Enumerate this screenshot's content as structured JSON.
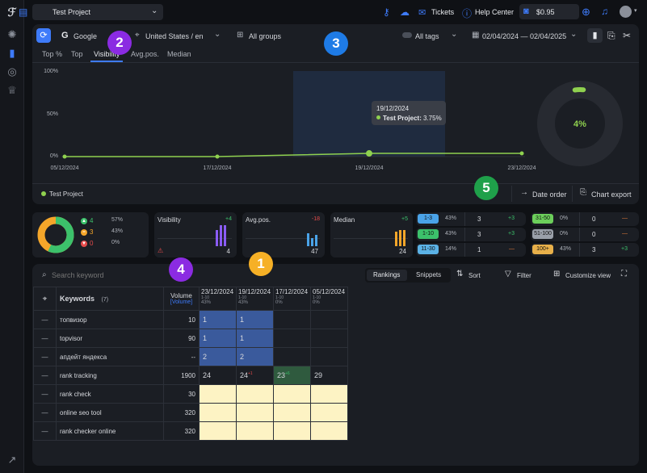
{
  "topbar": {
    "project_name": "Test Project",
    "tickets_label": "Tickets",
    "help_label": "Help Center",
    "balance": "$0.95"
  },
  "filters": {
    "engine": "Google",
    "region": "United States / en",
    "groups": "All groups",
    "tags": "All tags",
    "date_range": "02/04/2024 — 02/04/2025"
  },
  "tabs": [
    "Top %",
    "Top",
    "Visibility",
    "Avg.pos.",
    "Median"
  ],
  "chart_data": {
    "type": "line",
    "x": [
      "05/12/2024",
      "17/12/2024",
      "19/12/2024",
      "23/12/2024"
    ],
    "series": [
      {
        "name": "Test Project",
        "values": [
          0,
          0,
          3.75,
          3.75
        ],
        "color": "#8fd14f"
      }
    ],
    "yticks": [
      "100%",
      "50%",
      "0%"
    ],
    "ylim": [
      0,
      100
    ],
    "tooltip": {
      "date": "19/12/2024",
      "label": "Test Project:",
      "value": "3.75%"
    },
    "donut_value": "4%",
    "legend": "Test Project"
  },
  "chart_actions": {
    "date_order": "Date order",
    "chart_export": "Chart export"
  },
  "summary": {
    "dist": [
      {
        "count": "4",
        "pct": "57%",
        "color": "#3cc16b"
      },
      {
        "count": "3",
        "pct": "43%",
        "color": "#f4a62a"
      },
      {
        "count": "0",
        "pct": "0%",
        "color": "#e64b4b"
      }
    ],
    "visibility": {
      "label": "Visibility",
      "delta": "+4",
      "value": "4"
    },
    "avgpos": {
      "label": "Avg.pos.",
      "delta": "-18",
      "value": "47"
    },
    "median": {
      "label": "Median",
      "delta": "+5",
      "value": "24"
    },
    "ranges_left": [
      {
        "range": "1-3",
        "pct": "43%",
        "count": "3",
        "delta": "+3",
        "color": "#4aa3e8"
      },
      {
        "range": "1-10",
        "pct": "43%",
        "count": "3",
        "delta": "+3",
        "color": "#3cc16b"
      },
      {
        "range": "11-30",
        "pct": "14%",
        "count": "1",
        "delta": "—",
        "color": "#5bb2e6"
      }
    ],
    "ranges_right": [
      {
        "range": "31-50",
        "pct": "0%",
        "count": "0",
        "delta": "—",
        "color": "#6ccf5b"
      },
      {
        "range": "51-100",
        "pct": "0%",
        "count": "0",
        "delta": "—",
        "color": "#9aa0aa"
      },
      {
        "range": "100+",
        "pct": "43%",
        "count": "3",
        "delta": "+3",
        "color": "#e8b04a"
      }
    ]
  },
  "table": {
    "search_placeholder": "Search keyword",
    "toggle": [
      "Rankings",
      "Snippets"
    ],
    "sort_label": "Sort",
    "filter_label": "Filter",
    "customize_label": "Customize view",
    "keywords_header": "Keywords",
    "keywords_count": "(7)",
    "volume_header": "Volume",
    "volume_sub": "[Volume]",
    "dates": [
      {
        "date": "23/12/2024",
        "range": "1-10",
        "pct": "43%"
      },
      {
        "date": "19/12/2024",
        "range": "1-10",
        "pct": "43%"
      },
      {
        "date": "17/12/2024",
        "range": "1-10",
        "pct": "0%"
      },
      {
        "date": "05/12/2024",
        "range": "1-10",
        "pct": "0%"
      }
    ],
    "rows": [
      {
        "keyword": "топвизор",
        "volume": "10",
        "c": [
          "1",
          "1",
          "",
          ""
        ]
      },
      {
        "keyword": "topvisor",
        "volume": "90",
        "c": [
          "1",
          "1",
          "",
          ""
        ]
      },
      {
        "keyword": "апдейт яндекса",
        "volume": "--",
        "c": [
          "2",
          "2",
          "",
          ""
        ]
      },
      {
        "keyword": "rank tracking",
        "volume": "1900",
        "c": [
          "24",
          "24",
          "23",
          "29"
        ],
        "sup": [
          "",
          "+1",
          "+6",
          ""
        ]
      },
      {
        "keyword": "rank check",
        "volume": "30",
        "c": [
          "",
          "",
          "",
          ""
        ]
      },
      {
        "keyword": "online seo tool",
        "volume": "320",
        "c": [
          "",
          "",
          "",
          ""
        ]
      },
      {
        "keyword": "rank checker online",
        "volume": "320",
        "c": [
          "",
          "",
          "",
          ""
        ]
      }
    ]
  },
  "badges": [
    "1",
    "2",
    "3",
    "4",
    "5"
  ],
  "colors": {
    "accent": "#3e7bfa",
    "line": "#8fd14f",
    "yellow_cell": "#fdf3c4",
    "blue_cell": "#3a5a9c"
  }
}
